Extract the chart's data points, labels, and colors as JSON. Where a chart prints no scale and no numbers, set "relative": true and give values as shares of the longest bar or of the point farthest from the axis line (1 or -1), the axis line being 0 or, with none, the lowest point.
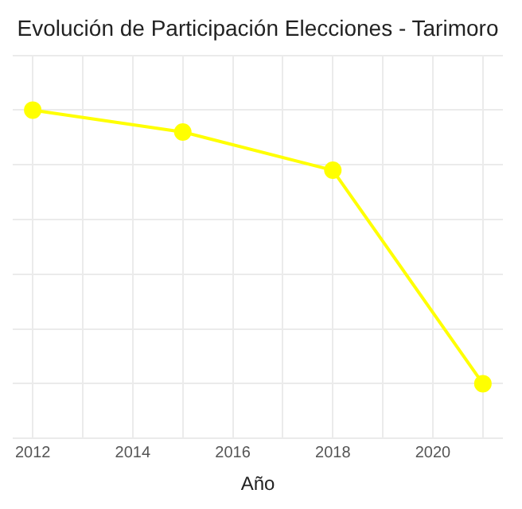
{
  "chart_data": {
    "type": "line",
    "title": "Evolución de Participación Elecciones - Tarimoro",
    "xlabel": "Año",
    "x": [
      2012,
      2015,
      2018,
      2021
    ],
    "series": [
      {
        "color": "#ffff00",
        "values": [
          1,
          0.92,
          0.78,
          0
        ]
      }
    ],
    "relative": true,
    "xlim": [
      2011.6,
      2021.4
    ],
    "xticks": [
      2012,
      {
        "value": 2013,
        "label": null
      },
      2014,
      {
        "value": 2015,
        "label": null
      },
      2016,
      {
        "value": 2017,
        "label": null
      },
      2018,
      {
        "value": 2019,
        "label": null
      },
      2020,
      {
        "value": 2021,
        "label": null
      }
    ],
    "grid": true,
    "legend": false,
    "marker": "circle",
    "line_style": "solid"
  }
}
